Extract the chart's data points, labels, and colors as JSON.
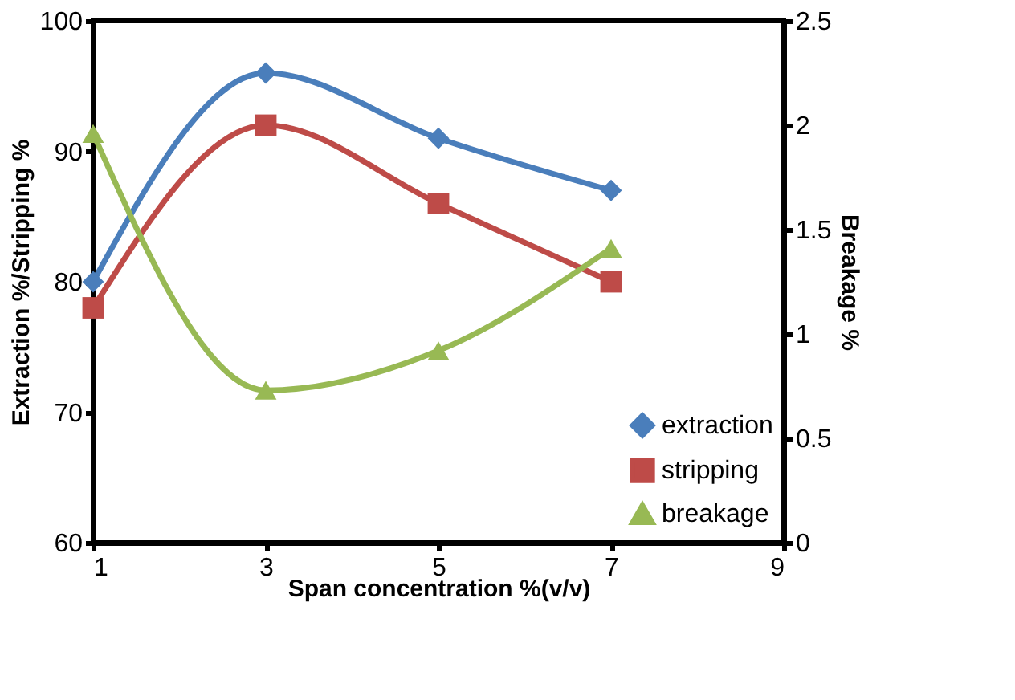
{
  "chart_data": {
    "type": "line",
    "xlabel": "Span concentration %(v/v)",
    "ylabel": "Extraction %/Stripping %",
    "y2label": "Breakage %",
    "x": [
      1,
      3,
      5,
      7
    ],
    "series": [
      {
        "name": "extraction",
        "color": "#4a7ebb",
        "marker": "diamond",
        "values": [
          80,
          96,
          91,
          87
        ]
      },
      {
        "name": "stripping",
        "color": "#be4b48",
        "marker": "square",
        "values": [
          78,
          92,
          86,
          80
        ]
      },
      {
        "name": "breakage",
        "color": "#98b954",
        "marker": "triangle",
        "axis": "y2",
        "values": [
          1.96,
          0.73,
          0.92,
          1.41
        ]
      }
    ],
    "xlim": [
      1,
      9
    ],
    "xticks": [
      1,
      3,
      5,
      7,
      9
    ],
    "ylim": [
      60,
      100
    ],
    "yticks": [
      60,
      70,
      80,
      90,
      100
    ],
    "y2lim": [
      0,
      2.5
    ],
    "y2ticks": [
      0,
      0.5,
      1,
      1.5,
      2,
      2.5
    ],
    "grid": false,
    "legend": "bottom right",
    "line_style": "solid"
  }
}
